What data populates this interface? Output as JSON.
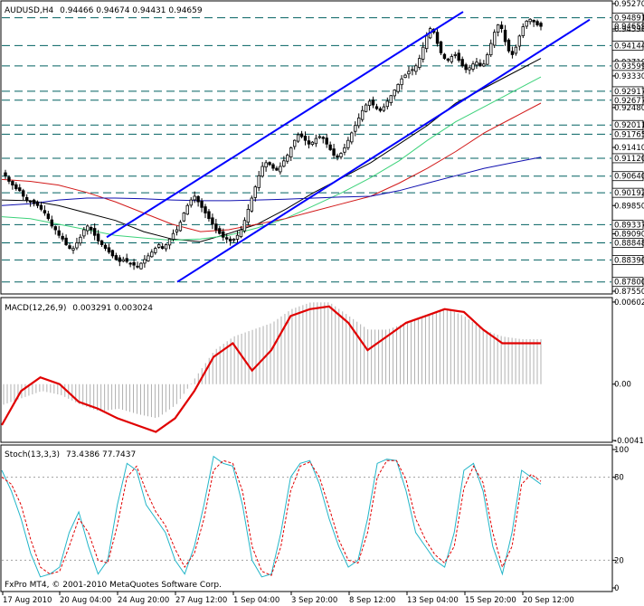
{
  "window": {
    "symbol_header": "AUDUSD,H4",
    "ohlc_header": "0.94466 0.94674 0.94431 0.94659",
    "copyright": "FxPro MT4, © 2001-2010 MetaQuotes Software Corp."
  },
  "colors": {
    "background": "#ffffff",
    "axis": "#000000",
    "channel": "#0000ff",
    "level_line": "#006060",
    "ma_black": "#000000",
    "ma_green": "#3cd27a",
    "ma_red": "#d21a1a",
    "ma_blue": "#1010b0",
    "macd_hist": "#b0b0b0",
    "macd_signal": "#e00000",
    "stoch_main": "#22b5c8",
    "stoch_signal": "#e00000",
    "price_label_bg": "#ffffff",
    "price_label_border": "#000000"
  },
  "chart_data": [
    {
      "type": "candlestick",
      "title": "AUDUSD,H4",
      "subtitle": "0.94466 0.94674 0.94431 0.94659",
      "ylim": [
        0.8755,
        0.9527
      ],
      "y_ticks": [
        "0.95270",
        "0.94891",
        "0.94659",
        "0.94590",
        "0.94144",
        "0.93710",
        "0.93599",
        "0.93330",
        "0.92917",
        "0.92677",
        "0.92480",
        "0.92011",
        "0.91765",
        "0.91410",
        "0.91120",
        "0.90640",
        "0.90192",
        "0.89850",
        "0.89337",
        "0.89090",
        "0.88848",
        "0.88390",
        "0.87800",
        "0.87550"
      ],
      "y_tick_values": [
        0.9527,
        0.94891,
        0.94659,
        0.9459,
        0.94144,
        0.9371,
        0.93599,
        0.9333,
        0.92917,
        0.92677,
        0.9248,
        0.92011,
        0.91765,
        0.9141,
        0.9112,
        0.9064,
        0.90192,
        0.8985,
        0.89337,
        0.8909,
        0.88848,
        0.8839,
        0.878,
        0.8755
      ],
      "boxed_ticks": [
        "0.94891",
        "0.94659",
        "0.94144",
        "0.93599",
        "0.92917",
        "0.92677",
        "0.92011",
        "0.91765",
        "0.91120",
        "0.90640",
        "0.90192",
        "0.89337",
        "0.88848",
        "0.88390",
        "0.87800"
      ],
      "horizontal_levels": [
        0.94891,
        0.94144,
        0.93599,
        0.92917,
        0.92677,
        0.92011,
        0.91765,
        0.9112,
        0.9064,
        0.90192,
        0.89337,
        0.88848,
        0.8839,
        0.878
      ],
      "x_tick_labels": [
        "17 Aug 2010",
        "20 Aug 04:00",
        "24 Aug 20:00",
        "27 Aug 12:00",
        "1 Sep 04:00",
        "3 Sep 20:00",
        "8 Sep 12:00",
        "13 Sep 04:00",
        "15 Sep 20:00",
        "20 Sep 12:00"
      ],
      "close": [
        0.9065,
        0.905,
        0.904,
        0.903,
        0.9025,
        0.901,
        0.9,
        0.8995,
        0.899,
        0.8985,
        0.8975,
        0.8965,
        0.895,
        0.893,
        0.892,
        0.8905,
        0.8895,
        0.888,
        0.887,
        0.887,
        0.8885,
        0.89,
        0.892,
        0.893,
        0.892,
        0.8905,
        0.889,
        0.888,
        0.887,
        0.886,
        0.885,
        0.884,
        0.8835,
        0.884,
        0.8835,
        0.883,
        0.8825,
        0.882,
        0.883,
        0.884,
        0.885,
        0.886,
        0.887,
        0.888,
        0.887,
        0.888,
        0.8895,
        0.891,
        0.892,
        0.894,
        0.8965,
        0.8985,
        0.9,
        0.901,
        0.8995,
        0.898,
        0.8965,
        0.895,
        0.8935,
        0.892,
        0.891,
        0.89,
        0.8895,
        0.889,
        0.8895,
        0.8905,
        0.892,
        0.8945,
        0.8975,
        0.9005,
        0.9035,
        0.9065,
        0.909,
        0.91,
        0.9095,
        0.9085,
        0.908,
        0.909,
        0.9105,
        0.912,
        0.914,
        0.916,
        0.9175,
        0.917,
        0.916,
        0.915,
        0.9155,
        0.9165,
        0.917,
        0.9165,
        0.915,
        0.9135,
        0.912,
        0.9115,
        0.9125,
        0.914,
        0.916,
        0.918,
        0.92,
        0.922,
        0.924,
        0.9255,
        0.9265,
        0.9255,
        0.9245,
        0.924,
        0.925,
        0.9265,
        0.928,
        0.9295,
        0.931,
        0.9325,
        0.9335,
        0.9345,
        0.935,
        0.936,
        0.938,
        0.941,
        0.944,
        0.946,
        0.945,
        0.942,
        0.9395,
        0.938,
        0.9375,
        0.9385,
        0.939,
        0.9375,
        0.936,
        0.935,
        0.9355,
        0.9365,
        0.937,
        0.936,
        0.9365,
        0.939,
        0.942,
        0.945,
        0.947,
        0.946,
        0.9425,
        0.94,
        0.939,
        0.941,
        0.944,
        0.9465,
        0.948,
        0.9485,
        0.9478,
        0.947,
        0.9466
      ],
      "channel_upper": [
        [
          0.89,
          0.9505
        ]
      ],
      "channel_lower": [
        [
          0.878,
          0.9484
        ]
      ],
      "ma_series": [
        {
          "color": "black",
          "values": [
            0.9,
            0.8998,
            0.8985,
            0.8965,
            0.8945,
            0.8915,
            0.8895,
            0.8888,
            0.891,
            0.8935,
            0.8975,
            0.902,
            0.906,
            0.91,
            0.915,
            0.92,
            0.926,
            0.93,
            0.934,
            0.938
          ]
        },
        {
          "color": "green",
          "values": [
            0.8955,
            0.895,
            0.8935,
            0.892,
            0.8905,
            0.8898,
            0.8892,
            0.8895,
            0.8905,
            0.8925,
            0.895,
            0.8985,
            0.902,
            0.906,
            0.9105,
            0.916,
            0.921,
            0.925,
            0.929,
            0.933
          ]
        },
        {
          "color": "red",
          "values": [
            0.9055,
            0.905,
            0.904,
            0.902,
            0.8995,
            0.8965,
            0.8935,
            0.8915,
            0.892,
            0.8935,
            0.895,
            0.897,
            0.899,
            0.901,
            0.9045,
            0.9085,
            0.913,
            0.918,
            0.922,
            0.926
          ]
        },
        {
          "color": "blue",
          "values": [
            0.8985,
            0.899,
            0.9,
            0.9005,
            0.9005,
            0.9003,
            0.9,
            0.8998,
            0.8998,
            0.9,
            0.9002,
            0.9005,
            0.9008,
            0.901,
            0.9025,
            0.9045,
            0.9065,
            0.9085,
            0.91,
            0.9115
          ]
        }
      ]
    },
    {
      "type": "bar",
      "title": "MACD(12,26,9)",
      "subtitle": "0.003291 0.003024",
      "ylim": [
        -0.00413,
        0.00602
      ],
      "y_ticks": [
        "0.006024",
        "0.00",
        "-0.00413"
      ],
      "signal": [
        -0.003,
        -0.0005,
        0.0005,
        0.0,
        -0.0013,
        -0.0018,
        -0.0025,
        -0.003,
        -0.0035,
        -0.0025,
        -0.0005,
        0.002,
        0.003,
        0.001,
        0.0025,
        0.005,
        0.0055,
        0.0057,
        0.0045,
        0.0025,
        0.0035,
        0.0045,
        0.005,
        0.0055,
        0.0053,
        0.004,
        0.003,
        0.003,
        0.003
      ],
      "histogram": [
        -0.0015,
        -0.001,
        -0.0005,
        -0.0008,
        -0.0015,
        -0.002,
        -0.0018,
        -0.0022,
        -0.0025,
        -0.0015,
        0.0005,
        0.0025,
        0.0035,
        0.004,
        0.0045,
        0.0055,
        0.006,
        0.006,
        0.005,
        0.004,
        0.004,
        0.0045,
        0.005,
        0.0056,
        0.005,
        0.004,
        0.0035,
        0.0033,
        0.0033
      ]
    },
    {
      "type": "line",
      "title": "Stoch(13,3,3)",
      "subtitle": "73.4386 77.7437",
      "ylim": [
        0,
        100
      ],
      "y_ticks": [
        "100",
        "80",
        "20",
        "0"
      ],
      "levels": [
        80,
        20
      ],
      "series": [
        {
          "values": [
            85,
            70,
            50,
            25,
            8,
            10,
            15,
            40,
            55,
            30,
            10,
            20,
            60,
            90,
            85,
            60,
            50,
            40,
            20,
            10,
            30,
            60,
            95,
            90,
            88,
            60,
            20,
            8,
            10,
            40,
            80,
            90,
            92,
            75,
            50,
            30,
            15,
            20,
            50,
            90,
            93,
            92,
            70,
            40,
            30,
            20,
            15,
            40,
            85,
            90,
            70,
            30,
            10,
            40,
            85,
            80,
            75
          ]
        },
        {
          "values": [
            80,
            75,
            60,
            35,
            15,
            10,
            12,
            30,
            50,
            40,
            20,
            18,
            45,
            80,
            88,
            70,
            55,
            45,
            28,
            15,
            25,
            50,
            85,
            92,
            90,
            70,
            30,
            12,
            9,
            30,
            70,
            88,
            91,
            80,
            58,
            35,
            20,
            18,
            40,
            80,
            92,
            92,
            78,
            50,
            35,
            24,
            18,
            30,
            72,
            88,
            76,
            40,
            15,
            30,
            75,
            82,
            77
          ]
        }
      ]
    }
  ]
}
